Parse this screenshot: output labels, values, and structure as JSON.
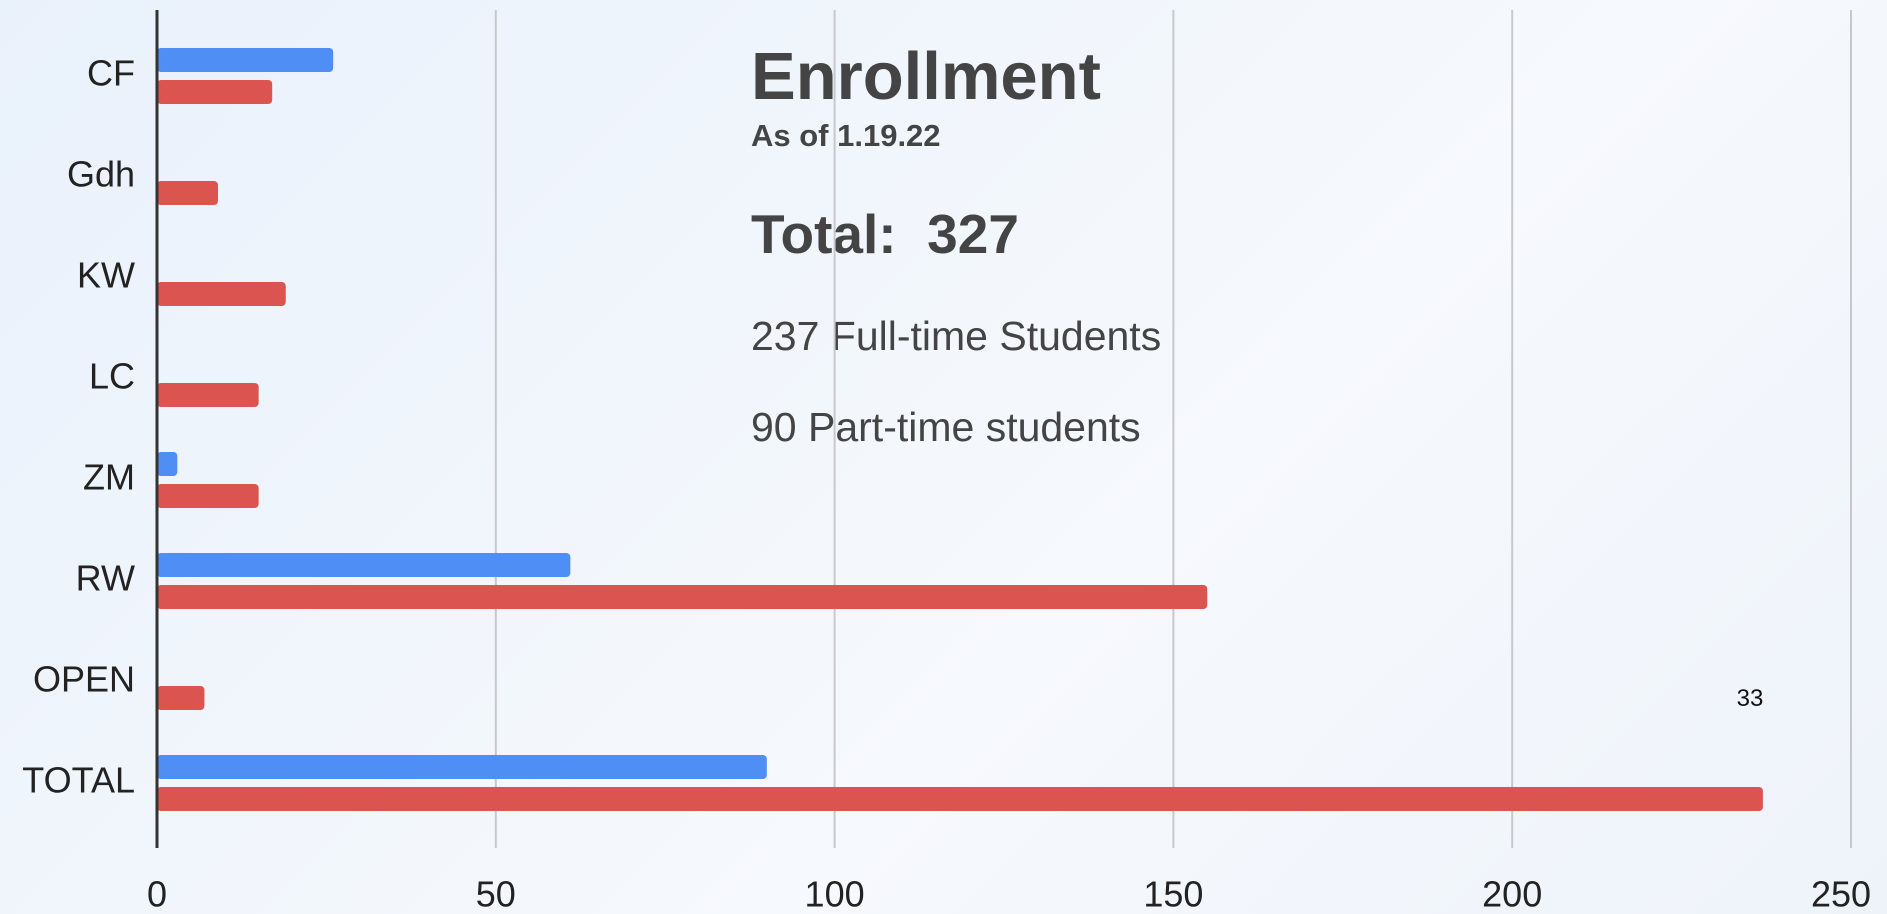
{
  "chart_data": {
    "type": "hbar",
    "title": "Enrollment",
    "subtitle": "As of 1.19.22",
    "annotations": [
      "Total:  327",
      "237 Full-time Students",
      "90 Part-time students",
      "33"
    ],
    "categories": [
      "CF",
      "Gdh",
      "KW",
      "LC",
      "ZM",
      "RW",
      "OPEN",
      "TOTAL"
    ],
    "series": [
      {
        "color": "#4e8ef5",
        "values": [
          26,
          0,
          0,
          0,
          3,
          61,
          0,
          90
        ]
      },
      {
        "color": "#dc5450",
        "values": [
          17,
          9,
          19,
          15,
          15,
          155,
          7,
          237
        ]
      }
    ],
    "xlim": [
      0,
      250
    ],
    "xticks": [
      0,
      50,
      100,
      150,
      200,
      250
    ],
    "grid": true
  }
}
